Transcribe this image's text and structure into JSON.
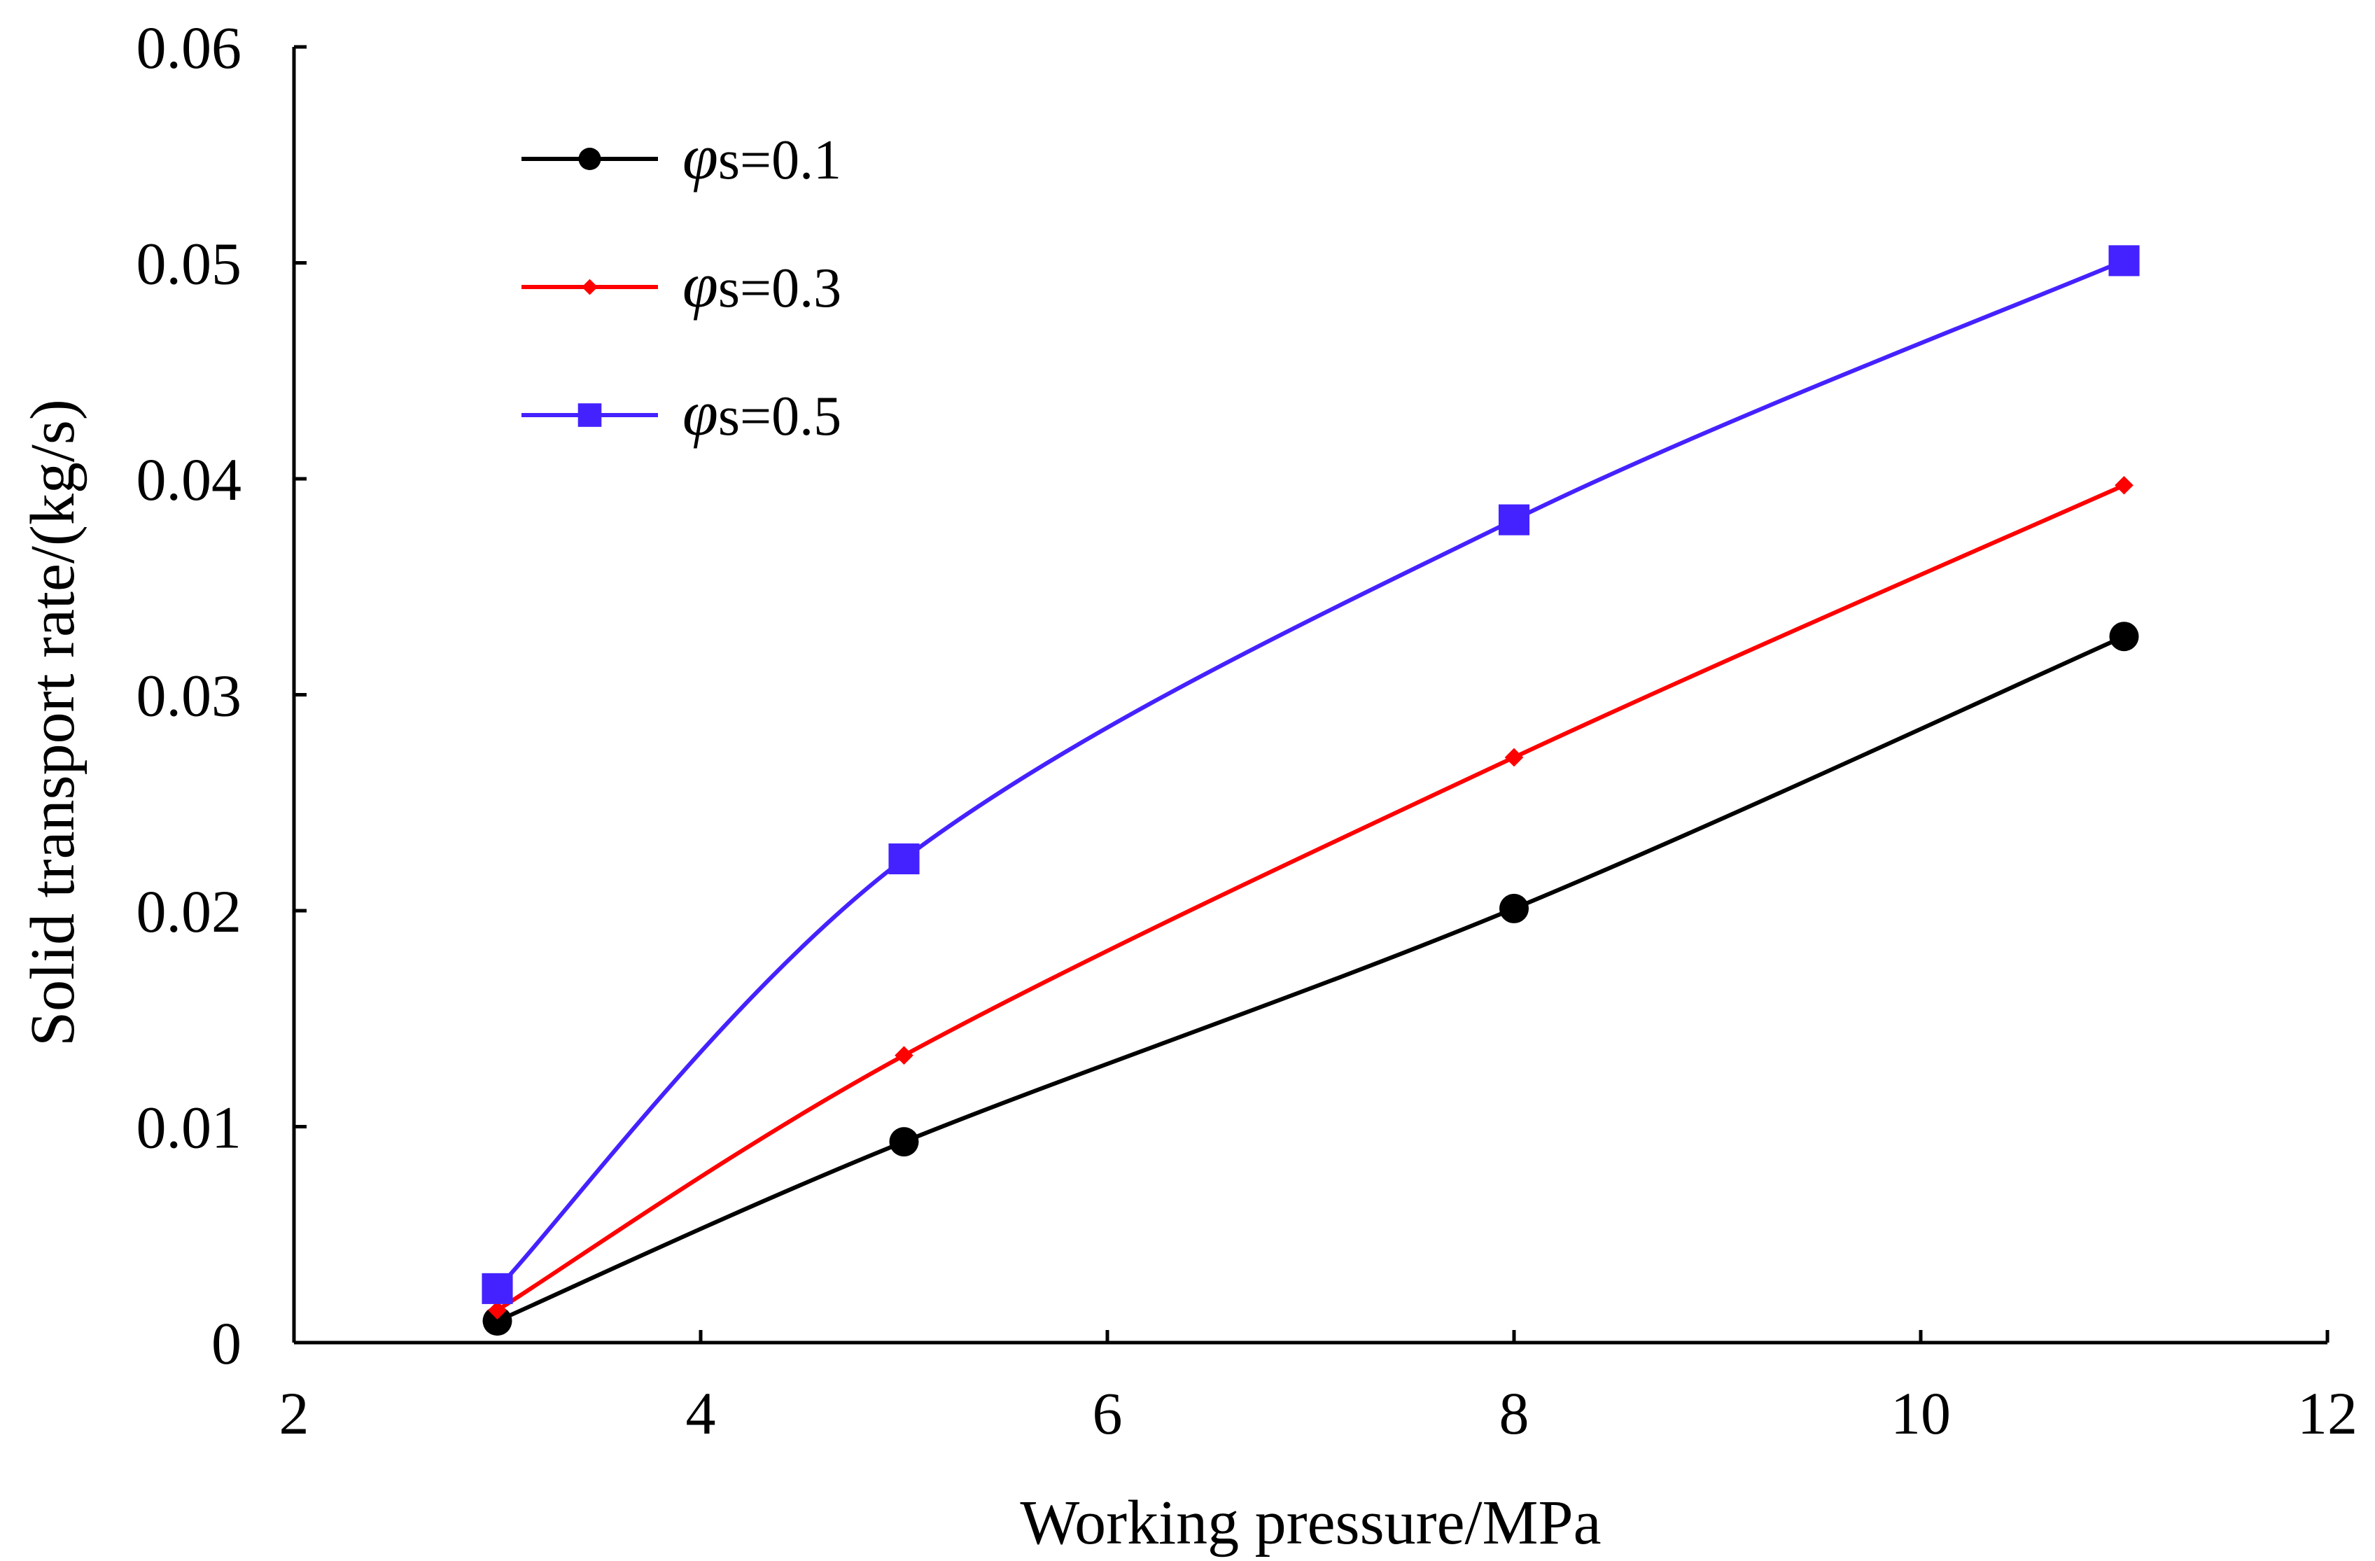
{
  "chart_data": {
    "type": "line",
    "title": "",
    "xlabel": "Working pressure/MPa",
    "ylabel": "Solid transport rate/(kg/s)",
    "xlim": [
      2,
      12
    ],
    "ylim": [
      0,
      0.06
    ],
    "xticks": [
      2,
      4,
      6,
      8,
      10,
      12
    ],
    "xtick_labels": [
      "2",
      "4",
      "6",
      "8",
      "10",
      "12"
    ],
    "yticks": [
      0,
      0.01,
      0.02,
      0.03,
      0.04,
      0.05,
      0.06
    ],
    "ytick_labels": [
      "0",
      "0.01",
      "0.02",
      "0.03",
      "0.04",
      "0.05",
      "0.06"
    ],
    "grid": false,
    "smooth": true,
    "legend_position": "top-left",
    "x": [
      3,
      5,
      8,
      11
    ],
    "series": [
      {
        "name": "φs=0.1",
        "symbol": "φ",
        "label_suffix": "s=0.1",
        "color": "#000000",
        "marker": "circle",
        "values": [
          0.001,
          0.0093,
          0.0201,
          0.0327
        ]
      },
      {
        "name": "φs=0.3",
        "symbol": "φ",
        "label_suffix": "s=0.3",
        "color": "#ff0000",
        "marker": "diamond",
        "values": [
          0.0015,
          0.0133,
          0.0271,
          0.0397
        ]
      },
      {
        "name": "φs=0.5",
        "symbol": "φ",
        "label_suffix": "s=0.5",
        "color": "#4422ff",
        "marker": "square",
        "values": [
          0.0025,
          0.0224,
          0.0381,
          0.0501
        ]
      }
    ]
  }
}
